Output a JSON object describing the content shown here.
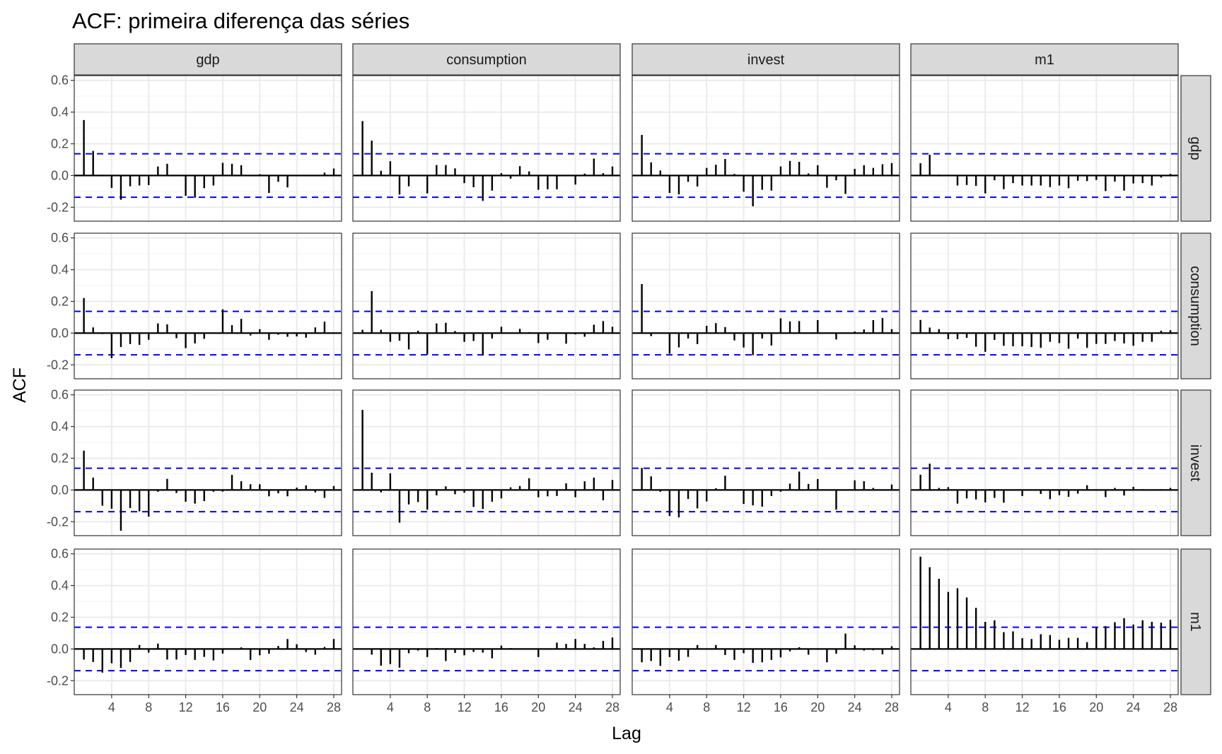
{
  "chart_data": {
    "type": "bar",
    "subtype": "acf-facet-grid",
    "title": "ACF: primeira diferença das séries",
    "xlabel": "Lag",
    "ylabel": "ACF",
    "xlim": [
      -0.04,
      28.84
    ],
    "ylim": [
      -0.288,
      0.63
    ],
    "x_ticks": [
      4,
      8,
      12,
      16,
      20,
      24,
      28
    ],
    "x_tick_labels": [
      "4",
      "8",
      "12",
      "16",
      "20",
      "24",
      "28"
    ],
    "y_ticks": [
      -0.2,
      0.0,
      0.2,
      0.4,
      0.6
    ],
    "y_tick_labels": [
      "-0.2",
      "0.0",
      "0.2",
      "0.4",
      "0.6"
    ],
    "confidence_bound": 0.137,
    "grid": true,
    "colors": {
      "bars": "#000000",
      "bounds": "#0000ff",
      "strip": "#d9d9d9",
      "grid": "#ebebeb"
    },
    "column_labels": [
      "gdp",
      "consumption",
      "invest",
      "m1"
    ],
    "row_labels": [
      "gdp",
      "consumption",
      "invest",
      "m1"
    ],
    "lags": [
      1,
      2,
      3,
      4,
      5,
      6,
      7,
      8,
      9,
      10,
      11,
      12,
      13,
      14,
      15,
      16,
      17,
      18,
      19,
      20,
      21,
      22,
      23,
      24,
      25,
      26,
      27,
      28
    ],
    "panels": [
      [
        [
          0.35,
          0.155,
          0.005,
          -0.078,
          -0.153,
          -0.068,
          -0.063,
          -0.06,
          0.057,
          0.074,
          0.0,
          -0.128,
          -0.14,
          -0.08,
          -0.063,
          0.08,
          0.074,
          0.065,
          0.0,
          0.008,
          -0.11,
          -0.04,
          -0.075,
          0.0,
          0.0,
          0.0,
          0.018,
          0.044
        ],
        [
          0.343,
          0.22,
          0.03,
          0.09,
          -0.12,
          -0.068,
          0.0,
          -0.113,
          0.066,
          0.066,
          0.045,
          -0.048,
          -0.074,
          -0.16,
          -0.095,
          0.015,
          -0.02,
          0.059,
          0.026,
          -0.09,
          -0.087,
          -0.087,
          0.0,
          -0.057,
          0.012,
          0.107,
          0.015,
          0.057
        ],
        [
          0.256,
          0.083,
          0.032,
          -0.11,
          -0.119,
          -0.04,
          -0.069,
          0.048,
          0.068,
          0.104,
          0.01,
          -0.102,
          -0.194,
          -0.09,
          -0.095,
          0.057,
          0.092,
          0.086,
          0.013,
          0.065,
          -0.077,
          -0.03,
          -0.116,
          0.042,
          0.065,
          0.048,
          0.071,
          0.078
        ],
        [
          0.078,
          0.131,
          0.005,
          0.005,
          -0.063,
          -0.06,
          -0.065,
          -0.113,
          -0.03,
          -0.086,
          -0.048,
          -0.063,
          -0.063,
          -0.063,
          -0.073,
          -0.063,
          -0.08,
          -0.033,
          -0.035,
          -0.028,
          -0.098,
          -0.038,
          -0.095,
          -0.05,
          -0.048,
          -0.063,
          -0.013,
          0.01
        ]
      ],
      [
        [
          0.221,
          0.036,
          -0.006,
          -0.158,
          -0.088,
          -0.069,
          -0.074,
          -0.042,
          0.061,
          0.055,
          -0.032,
          -0.095,
          -0.065,
          -0.036,
          -0.004,
          0.15,
          0.05,
          0.09,
          -0.015,
          0.025,
          -0.042,
          -0.01,
          -0.023,
          -0.021,
          -0.029,
          0.036,
          0.072,
          0.0
        ],
        [
          0.021,
          0.265,
          0.021,
          -0.055,
          -0.048,
          -0.103,
          0.015,
          -0.135,
          0.061,
          0.065,
          0.013,
          -0.055,
          -0.05,
          -0.141,
          -0.034,
          0.04,
          -0.004,
          0.027,
          0.006,
          -0.063,
          -0.042,
          -0.004,
          -0.067,
          -0.008,
          -0.023,
          0.053,
          0.076,
          0.04
        ],
        [
          0.309,
          -0.019,
          0.002,
          -0.13,
          -0.09,
          -0.034,
          -0.069,
          0.046,
          0.063,
          0.038,
          -0.046,
          -0.091,
          -0.139,
          -0.034,
          -0.078,
          0.093,
          0.074,
          0.076,
          0.0,
          0.082,
          0.0,
          -0.04,
          0.0,
          0.01,
          0.023,
          0.082,
          0.095,
          0.025
        ],
        [
          0.083,
          0.035,
          0.025,
          -0.038,
          -0.038,
          -0.03,
          -0.086,
          -0.118,
          -0.043,
          -0.08,
          -0.083,
          -0.083,
          -0.088,
          -0.093,
          -0.055,
          -0.063,
          -0.098,
          -0.035,
          -0.093,
          -0.068,
          -0.068,
          -0.05,
          -0.065,
          -0.08,
          -0.055,
          -0.055,
          0.015,
          0.018
        ]
      ],
      [
        [
          0.248,
          0.078,
          -0.099,
          -0.118,
          -0.257,
          -0.114,
          -0.135,
          -0.168,
          -0.011,
          0.07,
          -0.019,
          -0.074,
          -0.086,
          -0.07,
          -0.011,
          -0.01,
          0.095,
          0.055,
          0.036,
          0.036,
          -0.04,
          -0.021,
          -0.04,
          0.015,
          0.029,
          -0.015,
          -0.05,
          0.025
        ],
        [
          0.505,
          0.109,
          -0.015,
          0.105,
          -0.206,
          -0.091,
          -0.076,
          -0.124,
          -0.034,
          0.023,
          -0.027,
          -0.017,
          -0.107,
          -0.12,
          -0.074,
          -0.053,
          0.017,
          0.025,
          0.074,
          -0.046,
          -0.04,
          -0.038,
          0.042,
          -0.046,
          0.055,
          0.078,
          -0.065,
          0.063
        ],
        [
          0.139,
          0.086,
          -0.011,
          -0.164,
          -0.173,
          -0.057,
          -0.116,
          -0.072,
          0.011,
          0.09,
          0.0,
          -0.088,
          -0.097,
          -0.105,
          -0.038,
          -0.011,
          0.04,
          0.116,
          0.038,
          0.069,
          0.0,
          -0.124,
          0.0,
          0.061,
          0.055,
          0.013,
          0.0,
          0.034
        ],
        [
          0.096,
          0.166,
          0.013,
          0.018,
          -0.086,
          -0.053,
          -0.06,
          -0.078,
          -0.05,
          -0.08,
          0.0,
          -0.038,
          0.0,
          -0.025,
          -0.058,
          -0.033,
          -0.043,
          -0.023,
          0.03,
          0.0,
          -0.045,
          0.013,
          -0.035,
          0.02,
          0.005,
          0.0,
          0.005,
          0.013
        ]
      ],
      [
        [
          -0.067,
          -0.082,
          -0.149,
          -0.09,
          -0.12,
          -0.082,
          0.025,
          -0.023,
          0.034,
          -0.067,
          -0.067,
          -0.038,
          -0.069,
          -0.05,
          -0.072,
          -0.029,
          0.0,
          0.01,
          -0.069,
          -0.04,
          -0.03,
          0.019,
          0.063,
          0.03,
          -0.019,
          -0.036,
          0.013,
          0.063
        ],
        [
          0.0,
          -0.036,
          -0.105,
          -0.095,
          -0.118,
          -0.027,
          -0.01,
          -0.051,
          0.006,
          -0.076,
          -0.025,
          -0.04,
          -0.019,
          -0.023,
          -0.059,
          0.021,
          0.006,
          0.0,
          0.0,
          -0.051,
          0.0,
          0.04,
          0.032,
          0.063,
          0.032,
          0.01,
          0.051,
          0.072
        ],
        [
          -0.084,
          -0.076,
          -0.107,
          -0.051,
          -0.074,
          -0.05,
          0.025,
          0.0,
          0.025,
          -0.038,
          -0.069,
          -0.027,
          -0.088,
          -0.084,
          -0.069,
          -0.053,
          -0.015,
          0.011,
          -0.036,
          0.0,
          -0.084,
          -0.03,
          0.097,
          0.023,
          -0.01,
          -0.008,
          -0.034,
          0.017
        ],
        [
          0.582,
          0.516,
          0.443,
          0.36,
          0.383,
          0.325,
          0.259,
          0.171,
          0.181,
          0.106,
          0.111,
          0.068,
          0.063,
          0.093,
          0.088,
          0.058,
          0.07,
          0.07,
          0.043,
          0.136,
          0.144,
          0.169,
          0.194,
          0.154,
          0.181,
          0.171,
          0.166,
          0.184
        ]
      ]
    ]
  }
}
